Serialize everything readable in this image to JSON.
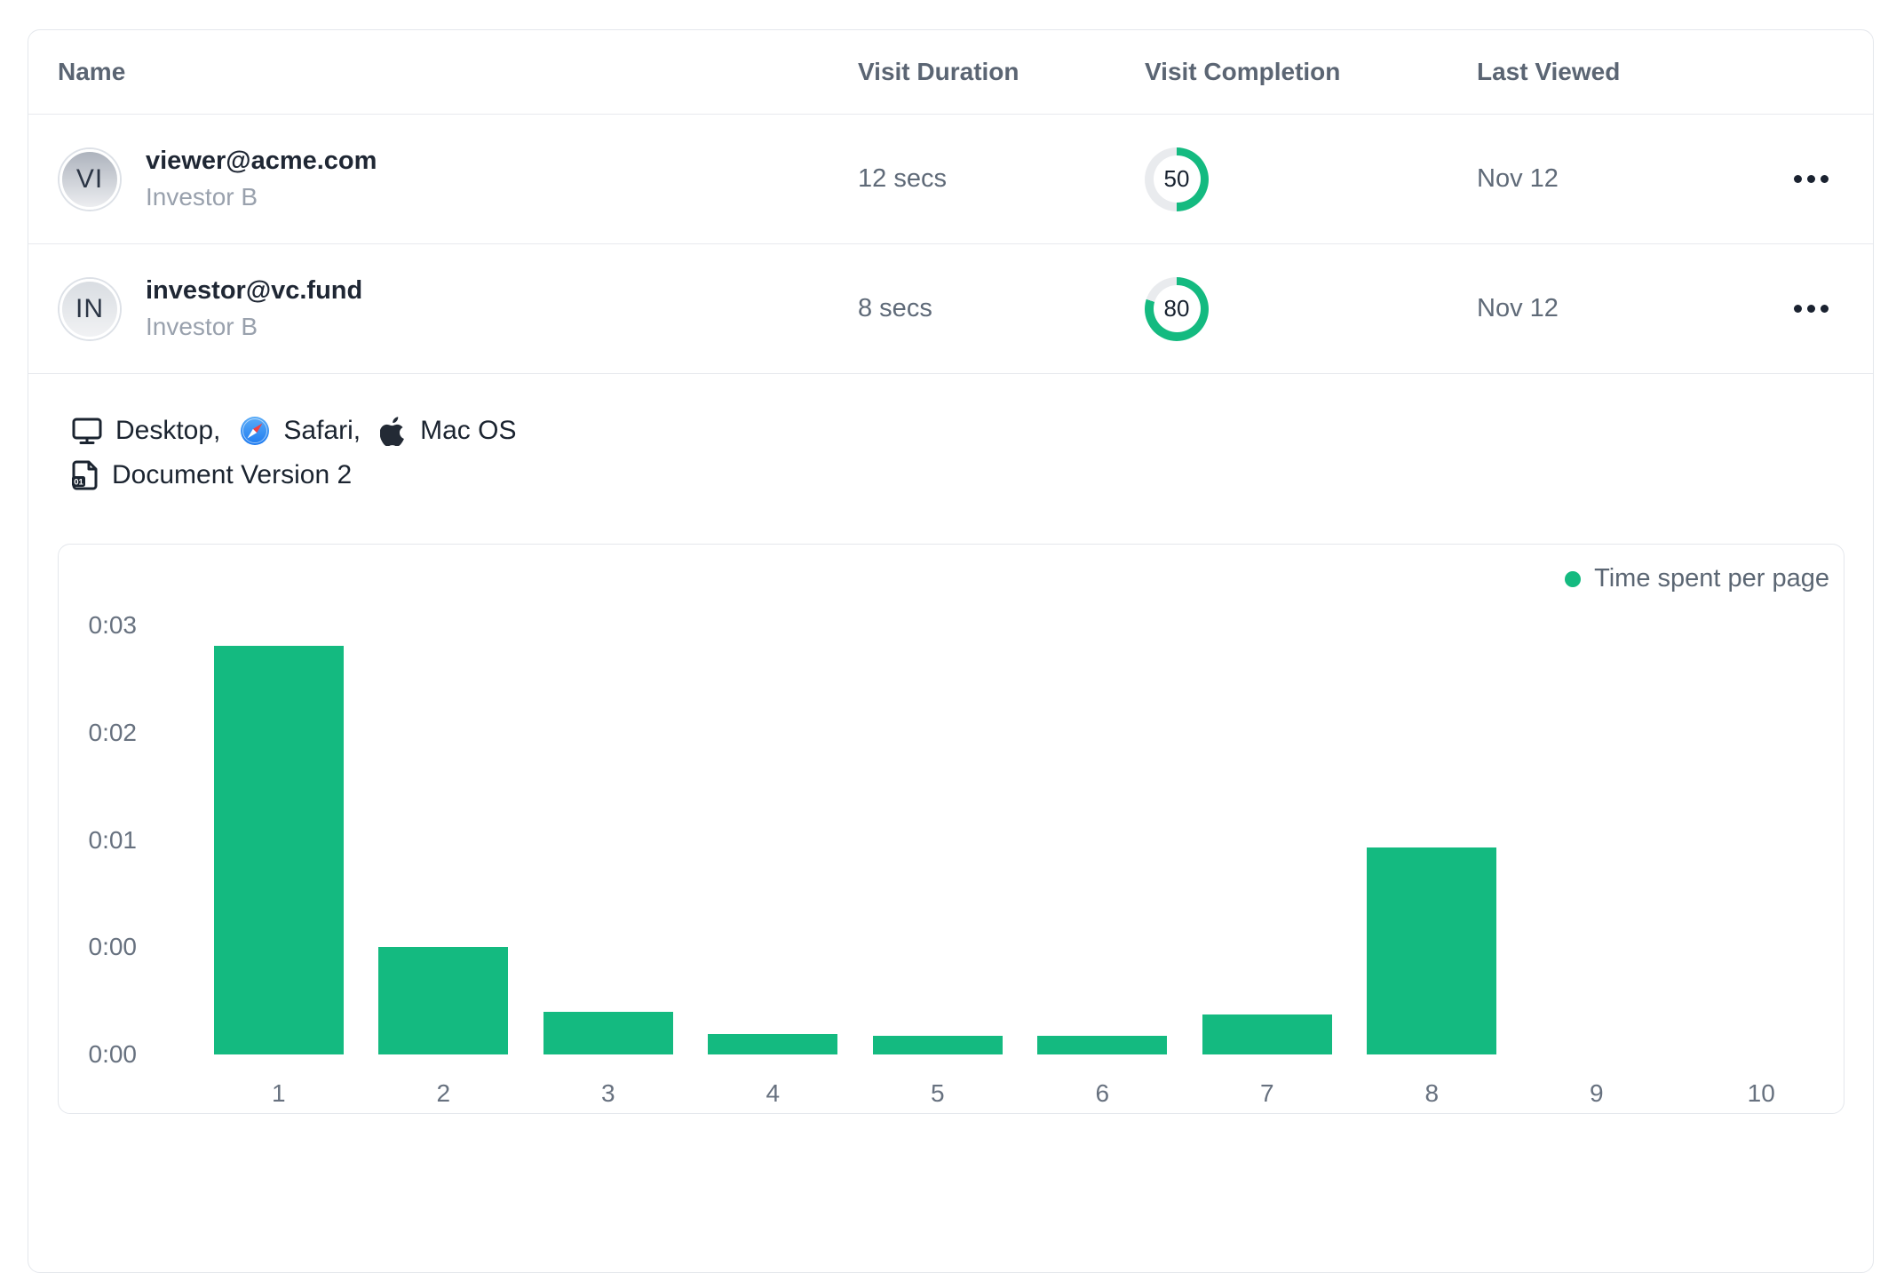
{
  "table": {
    "columns": [
      "Name",
      "Visit Duration",
      "Visit Completion",
      "Last Viewed"
    ],
    "rows": [
      {
        "initials": "VI",
        "email": "viewer@acme.com",
        "subtitle": "Investor B",
        "duration": "12 secs",
        "completion": 50,
        "last_viewed": "Nov 12"
      },
      {
        "initials": "IN",
        "email": "investor@vc.fund",
        "subtitle": "Investor B",
        "duration": "8 secs",
        "completion": 80,
        "last_viewed": "Nov 12"
      }
    ]
  },
  "detail": {
    "device": "Desktop,",
    "browser": "Safari,",
    "os": "Mac OS",
    "document_version": "Document Version 2",
    "icons": [
      "monitor-icon",
      "safari-icon",
      "apple-icon",
      "document-version-icon"
    ]
  },
  "chart_data": {
    "type": "bar",
    "title": "Time spent per page",
    "categories": [
      "1",
      "2",
      "3",
      "4",
      "5",
      "6",
      "7",
      "8",
      "9",
      "10"
    ],
    "series": [
      {
        "name": "Time spent per page",
        "values_seconds": [
          2.86,
          0.75,
          0.3,
          0.14,
          0.13,
          0.13,
          0.28,
          1.45,
          0,
          0
        ]
      }
    ],
    "xlabel": "",
    "ylabel": "",
    "ylim": [
      0,
      3
    ],
    "y_ticks": [
      {
        "value": 3,
        "label": "0:03"
      },
      {
        "value": 2.25,
        "label": "0:02"
      },
      {
        "value": 1.5,
        "label": "0:01"
      },
      {
        "value": 0.75,
        "label": "0:00"
      },
      {
        "value": 0,
        "label": "0:00"
      }
    ],
    "grid": false,
    "legend_position": "top-right"
  },
  "colors": {
    "accent_green": "#14ba80",
    "ring_track": "#e9ebee",
    "border": "#e4e7ec",
    "text_dark": "#1f2734",
    "text_muted": "#5f6a78",
    "text_light": "#99a1ad"
  }
}
